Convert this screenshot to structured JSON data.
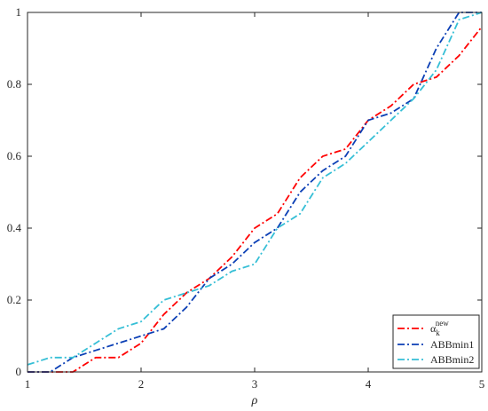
{
  "chart_data": {
    "type": "line",
    "xlabel": "ρ",
    "ylabel": "",
    "xlim": [
      1,
      5
    ],
    "ylim": [
      0,
      1
    ],
    "xticks": [
      "1",
      "2",
      "3",
      "4",
      "5"
    ],
    "yticks": [
      "0",
      "0.2",
      "0.4",
      "0.6",
      "0.8",
      "1"
    ],
    "grid": false,
    "legend_position": "bottom-right",
    "series": [
      {
        "name": "α",
        "name_subscript": "k",
        "name_superscript": "new",
        "color": "#ff0000",
        "x": [
          1.0,
          1.4,
          1.6,
          1.8,
          2.0,
          2.2,
          2.4,
          2.6,
          2.8,
          3.0,
          3.2,
          3.4,
          3.6,
          3.8,
          4.0,
          4.2,
          4.4,
          4.6,
          4.8,
          5.0
        ],
        "y": [
          0.0,
          0.0,
          0.04,
          0.04,
          0.08,
          0.16,
          0.22,
          0.26,
          0.32,
          0.4,
          0.44,
          0.54,
          0.6,
          0.62,
          0.7,
          0.74,
          0.8,
          0.82,
          0.88,
          0.96
        ]
      },
      {
        "name": "ABBmin1",
        "color": "#0b3fb5",
        "x": [
          1.0,
          1.2,
          1.4,
          1.6,
          1.8,
          2.0,
          2.2,
          2.4,
          2.6,
          2.8,
          3.0,
          3.2,
          3.4,
          3.6,
          3.8,
          4.0,
          4.2,
          4.4,
          4.6,
          4.8,
          5.0
        ],
        "y": [
          0.0,
          0.0,
          0.04,
          0.06,
          0.08,
          0.1,
          0.12,
          0.18,
          0.26,
          0.3,
          0.36,
          0.4,
          0.5,
          0.56,
          0.6,
          0.7,
          0.72,
          0.76,
          0.9,
          1.0,
          1.0
        ]
      },
      {
        "name": "ABBmin2",
        "color": "#36bfd6",
        "x": [
          1.0,
          1.2,
          1.4,
          1.6,
          1.8,
          2.0,
          2.2,
          2.4,
          2.6,
          2.8,
          3.0,
          3.2,
          3.4,
          3.6,
          3.8,
          4.0,
          4.2,
          4.4,
          4.6,
          4.8,
          5.0
        ],
        "y": [
          0.02,
          0.04,
          0.04,
          0.08,
          0.12,
          0.14,
          0.2,
          0.22,
          0.24,
          0.28,
          0.3,
          0.4,
          0.44,
          0.54,
          0.58,
          0.64,
          0.7,
          0.76,
          0.84,
          0.98,
          1.0
        ]
      }
    ]
  }
}
